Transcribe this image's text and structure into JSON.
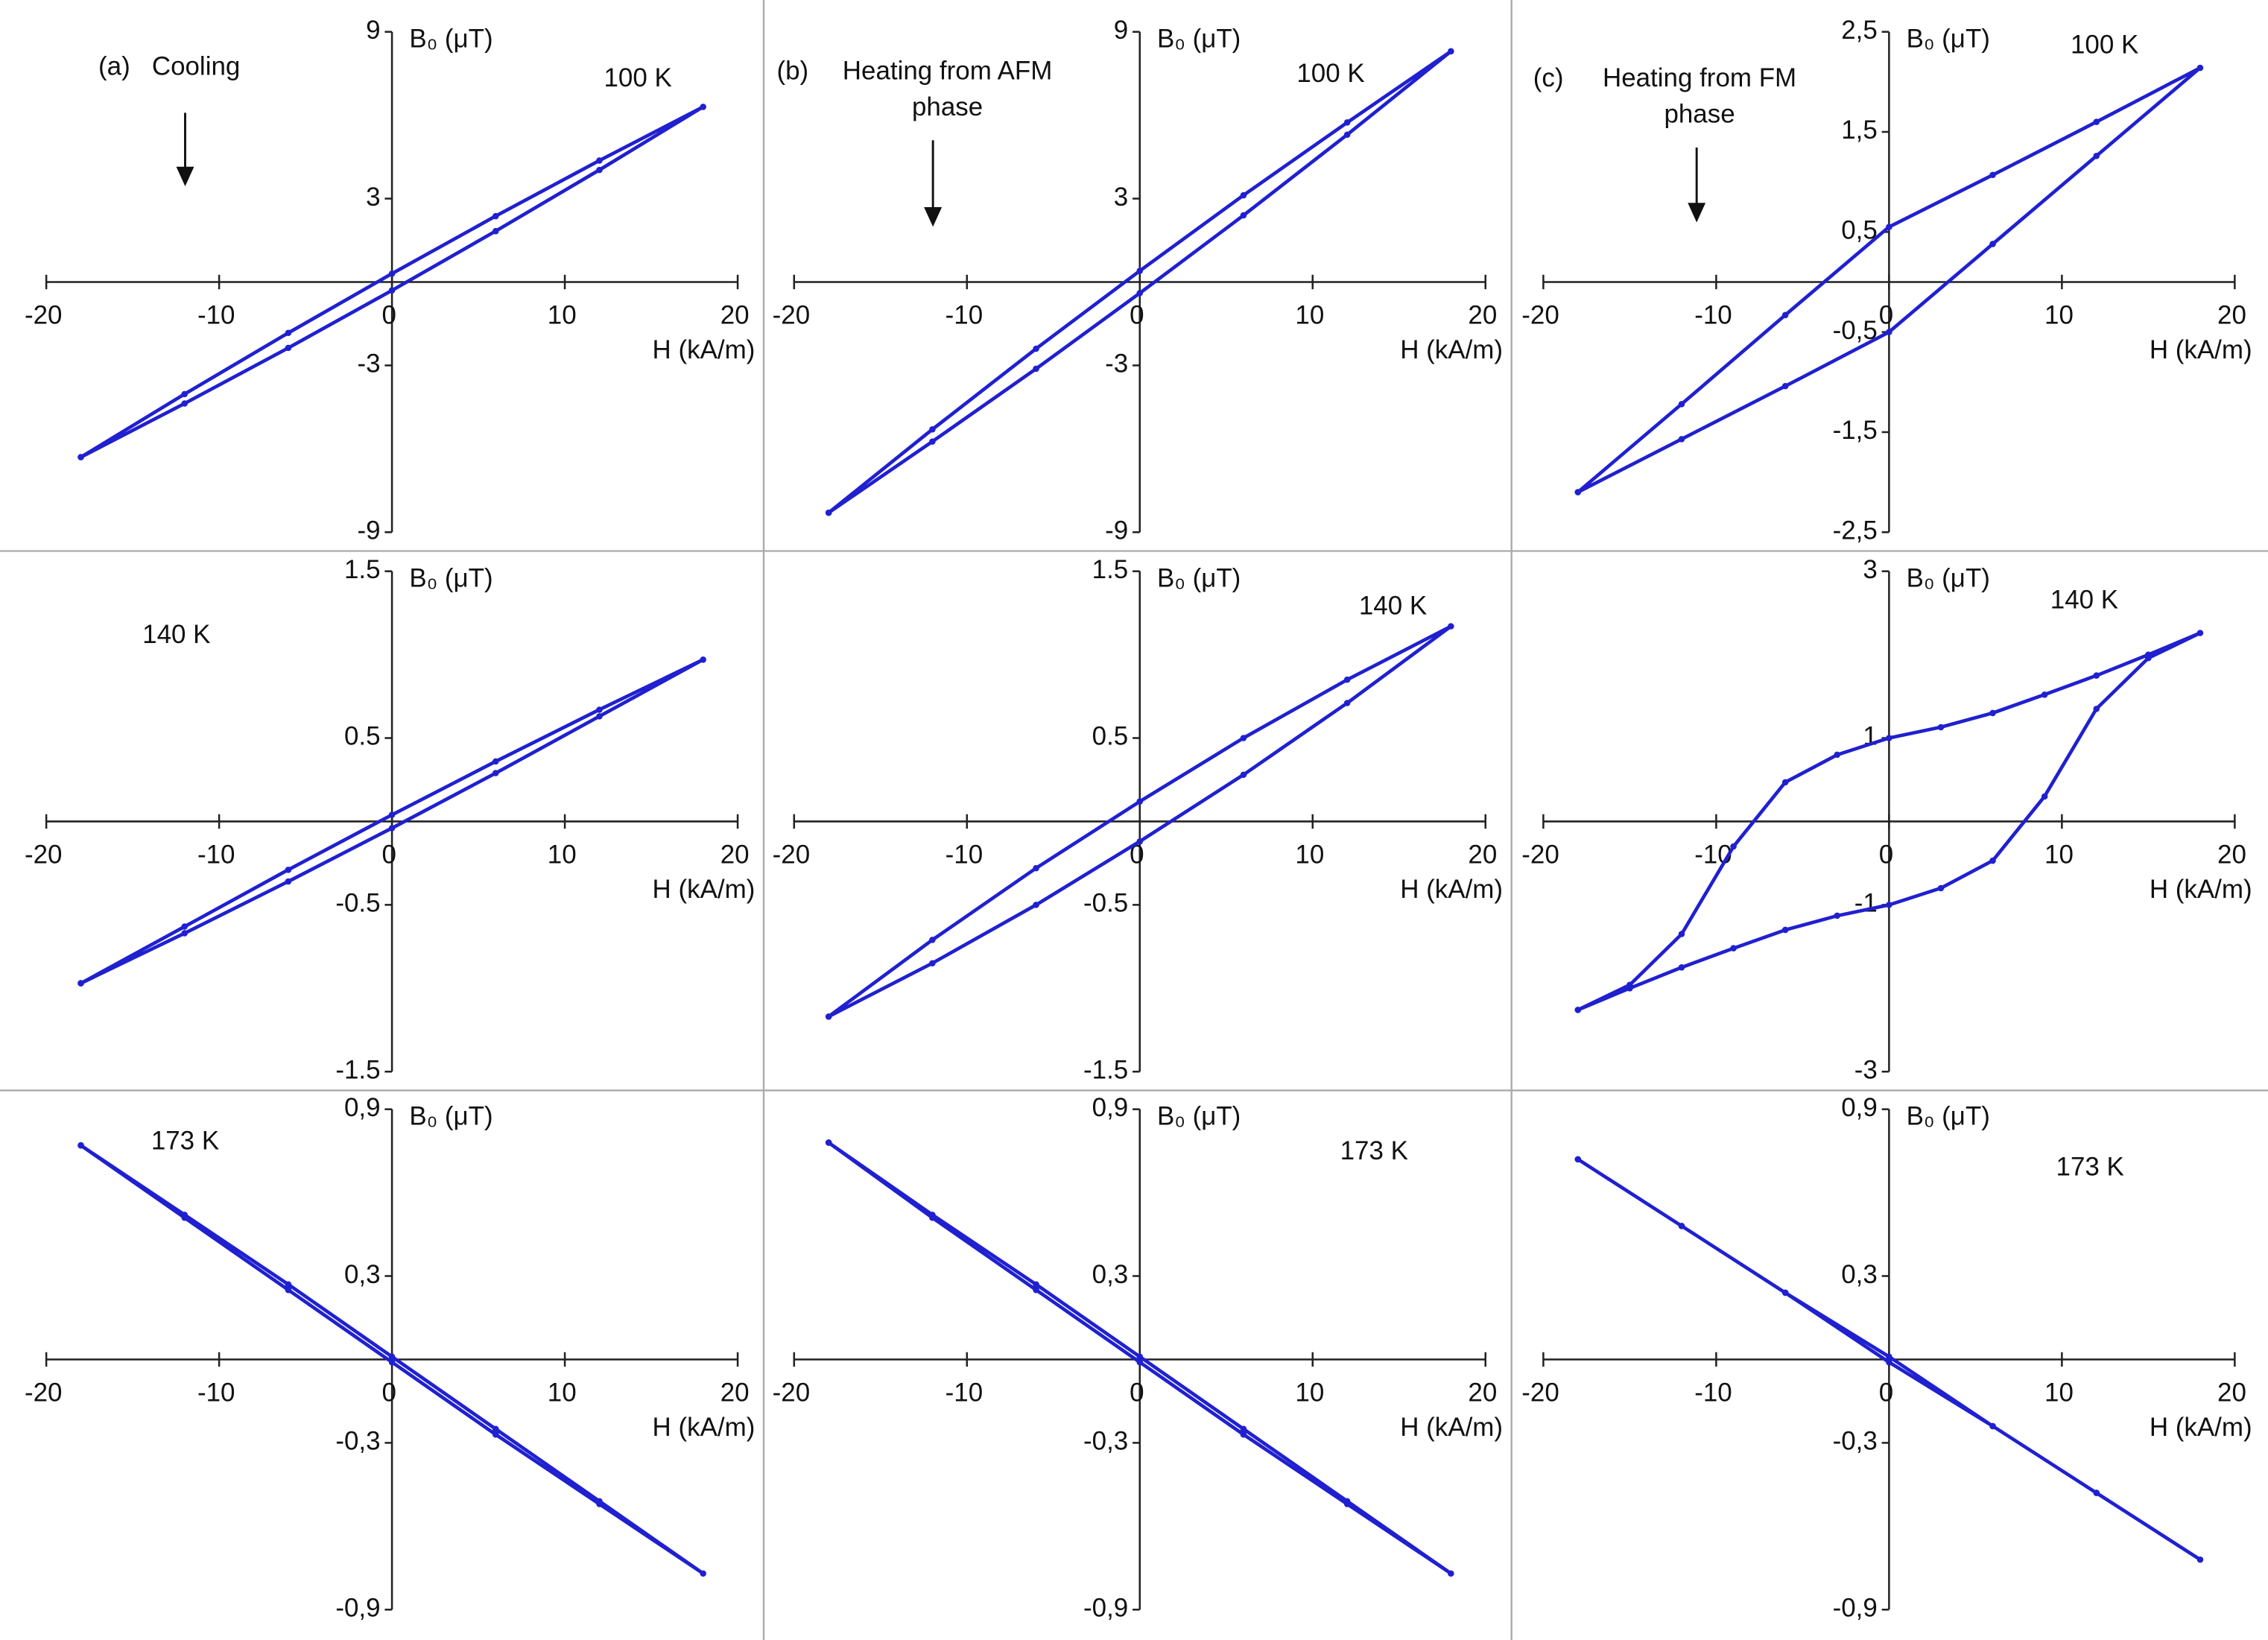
{
  "chart_data": [
    {
      "type": "line",
      "panel": "(a)",
      "title": [
        "Cooling"
      ],
      "annotation": "100 K",
      "x_label": "H (kA/m)",
      "y_label": "B₀ (μT)",
      "x": [
        -18,
        -12,
        -6,
        0,
        6,
        12,
        18,
        12,
        6,
        0,
        -6,
        -12,
        -18
      ],
      "series": [
        {
          "color": "#2020d0",
          "values": [
            -6.3,
            -4.37,
            -2.37,
            -0.3,
            1.83,
            4.03,
            6.3,
            4.37,
            2.37,
            0.3,
            -1.83,
            -4.03,
            -6.3
          ]
        }
      ],
      "xlim": [
        -20,
        20
      ],
      "xticks": [
        -20,
        -10,
        0,
        10,
        20
      ],
      "ylim": [
        -9,
        9
      ],
      "yticks": [
        -9,
        -3,
        3,
        9
      ]
    },
    {
      "type": "line",
      "panel": "(b)",
      "title": [
        "Heating from AFM",
        "phase"
      ],
      "annotation": "100 K",
      "x_label": "H (kA/m)",
      "y_label": "B₀ (μT)",
      "x": [
        -18,
        -12,
        -6,
        0,
        6,
        12,
        18,
        12,
        6,
        0,
        -6,
        -12,
        -18
      ],
      "series": [
        {
          "color": "#2020d0",
          "values": [
            -8.3,
            -5.74,
            -3.12,
            -0.4,
            2.4,
            5.3,
            8.3,
            5.74,
            3.12,
            0.4,
            -2.4,
            -5.3,
            -8.3
          ]
        }
      ],
      "xlim": [
        -20,
        20
      ],
      "xticks": [
        -20,
        -10,
        0,
        10,
        20
      ],
      "ylim": [
        -9,
        9
      ],
      "yticks": [
        -9,
        -3,
        3,
        9
      ]
    },
    {
      "type": "line",
      "panel": "(c)",
      "title": [
        "Heating from FM",
        "phase"
      ],
      "annotation": "100 K",
      "x_label": "H (kA/m)",
      "y_label": "B₀ (μT)",
      "x": [
        -18,
        -12,
        -6,
        0,
        6,
        12,
        18,
        12,
        6,
        0,
        -6,
        -12,
        -18
      ],
      "series": [
        {
          "color": "#2020d0",
          "values": [
            -2.1,
            -1.57,
            -1.04,
            -0.5,
            0.38,
            1.26,
            2.14,
            1.6,
            1.07,
            0.55,
            -0.33,
            -1.22,
            -2.1
          ]
        }
      ],
      "xlim": [
        -20,
        20
      ],
      "xticks": [
        -20,
        -10,
        0,
        10,
        20
      ],
      "ylim": [
        -2.5,
        2.5
      ],
      "yticks": [
        {
          "value": -2.5,
          "label": "-2,5"
        },
        {
          "value": -1.5,
          "label": "-1,5"
        },
        {
          "value": -0.5,
          "label": "-0,5"
        },
        {
          "value": 0.5,
          "label": "0,5"
        },
        {
          "value": 1.5,
          "label": "1,5"
        },
        {
          "value": 2.5,
          "label": "2,5"
        }
      ]
    },
    {
      "type": "line",
      "annotation": "140 K",
      "x_label": "H (kA/m)",
      "y_label": "B₀ (μT)",
      "x": [
        -18,
        -12,
        -6,
        0,
        6,
        12,
        18,
        12,
        6,
        0,
        -6,
        -12,
        -18
      ],
      "series": [
        {
          "color": "#2020d0",
          "values": [
            -0.97,
            -0.67,
            -0.36,
            -0.04,
            0.29,
            0.63,
            0.97,
            0.67,
            0.36,
            0.04,
            -0.29,
            -0.63,
            -0.97
          ]
        }
      ],
      "xlim": [
        -20,
        20
      ],
      "xticks": [
        -20,
        -10,
        0,
        10,
        20
      ],
      "ylim": [
        -1.5,
        1.5
      ],
      "yticks": [
        -1.5,
        -0.5,
        0.5,
        1.5
      ]
    },
    {
      "type": "line",
      "annotation": "140 K",
      "x_label": "H (kA/m)",
      "y_label": "B₀ (μT)",
      "x": [
        -18,
        -12,
        -6,
        0,
        6,
        12,
        18,
        12,
        6,
        0,
        -6,
        -12,
        -18
      ],
      "series": [
        {
          "color": "#2020d0",
          "values": [
            -1.17,
            -0.85,
            -0.5,
            -0.12,
            0.28,
            0.71,
            1.17,
            0.85,
            0.5,
            0.12,
            -0.28,
            -0.71,
            -1.17
          ]
        }
      ],
      "xlim": [
        -20,
        20
      ],
      "xticks": [
        -20,
        -10,
        0,
        10,
        20
      ],
      "ylim": [
        -1.5,
        1.5
      ],
      "yticks": [
        -1.5,
        -0.5,
        0.5,
        1.5
      ]
    },
    {
      "type": "line",
      "annotation": "140 K",
      "x_label": "H (kA/m)",
      "y_label": "B₀ (μT)",
      "x": [
        -18,
        -15,
        -12,
        -9,
        -6,
        -3,
        0,
        3,
        6,
        9,
        12,
        15,
        18,
        15,
        12,
        9,
        6,
        3,
        0,
        -3,
        -6,
        -9,
        -12,
        -15,
        -18
      ],
      "series": [
        {
          "color": "#2020d0",
          "values": [
            -2.26,
            -2.0,
            -1.75,
            -1.52,
            -1.3,
            -1.13,
            -1.0,
            -0.8,
            -0.47,
            0.3,
            1.35,
            1.96,
            2.26,
            2.0,
            1.75,
            1.52,
            1.3,
            1.13,
            1.0,
            0.8,
            0.47,
            -0.3,
            -1.35,
            -1.96,
            -2.26
          ]
        }
      ],
      "xlim": [
        -20,
        20
      ],
      "xticks": [
        -20,
        -10,
        0,
        10,
        20
      ],
      "ylim": [
        -3,
        3
      ],
      "yticks": [
        -3,
        -1,
        1,
        3
      ]
    },
    {
      "type": "line",
      "annotation": "173 K",
      "x_label": "H (kA/m)",
      "y_label": "B₀ (μT)",
      "x": [
        -18,
        -12,
        -6,
        0,
        6,
        12,
        18,
        12,
        6,
        0,
        -6,
        -12,
        -18
      ],
      "series": [
        {
          "color": "#2020d0",
          "values": [
            0.77,
            0.51,
            0.25,
            -0.01,
            -0.27,
            -0.52,
            -0.77,
            -0.51,
            -0.25,
            0.01,
            0.27,
            0.52,
            0.77
          ]
        }
      ],
      "xlim": [
        -20,
        20
      ],
      "xticks": [
        -20,
        -10,
        0,
        10,
        20
      ],
      "ylim": [
        -0.9,
        0.9
      ],
      "yticks": [
        {
          "value": -0.9,
          "label": "-0,9"
        },
        {
          "value": -0.3,
          "label": "-0,3"
        },
        {
          "value": 0.3,
          "label": "0,3"
        },
        {
          "value": 0.9,
          "label": "0,9"
        }
      ]
    },
    {
      "type": "line",
      "annotation": "173 K",
      "x_label": "H (kA/m)",
      "y_label": "B₀ (μT)",
      "x": [
        -18,
        -12,
        -6,
        0,
        6,
        12,
        18,
        12,
        6,
        0,
        -6,
        -12,
        -18
      ],
      "series": [
        {
          "color": "#2020d0",
          "values": [
            0.78,
            0.51,
            0.25,
            -0.01,
            -0.27,
            -0.52,
            -0.77,
            -0.51,
            -0.25,
            0.01,
            0.27,
            0.52,
            0.78
          ]
        }
      ],
      "xlim": [
        -20,
        20
      ],
      "xticks": [
        -20,
        -10,
        0,
        10,
        20
      ],
      "ylim": [
        -0.9,
        0.9
      ],
      "yticks": [
        {
          "value": -0.9,
          "label": "-0,9"
        },
        {
          "value": -0.3,
          "label": "-0,3"
        },
        {
          "value": 0.3,
          "label": "0,3"
        },
        {
          "value": 0.9,
          "label": "0,9"
        }
      ]
    },
    {
      "type": "line",
      "annotation": "173 K",
      "x_label": "H (kA/m)",
      "y_label": "B₀ (μT)",
      "x": [
        -18,
        -12,
        -6,
        0,
        6,
        12,
        18,
        12,
        6,
        0,
        -6,
        -12,
        -18
      ],
      "series": [
        {
          "color": "#2020d0",
          "values": [
            0.72,
            0.48,
            0.24,
            -0.01,
            -0.24,
            -0.48,
            -0.72,
            -0.48,
            -0.24,
            0.01,
            0.24,
            0.48,
            0.72
          ]
        }
      ],
      "xlim": [
        -20,
        20
      ],
      "xticks": [
        -20,
        -10,
        0,
        10,
        20
      ],
      "ylim": [
        -0.9,
        0.9
      ],
      "yticks": [
        {
          "value": -0.9,
          "label": "-0,9"
        },
        {
          "value": -0.3,
          "label": "-0,3"
        },
        {
          "value": 0.3,
          "label": "0,3"
        },
        {
          "value": 0.9,
          "label": "0,9"
        }
      ]
    }
  ]
}
